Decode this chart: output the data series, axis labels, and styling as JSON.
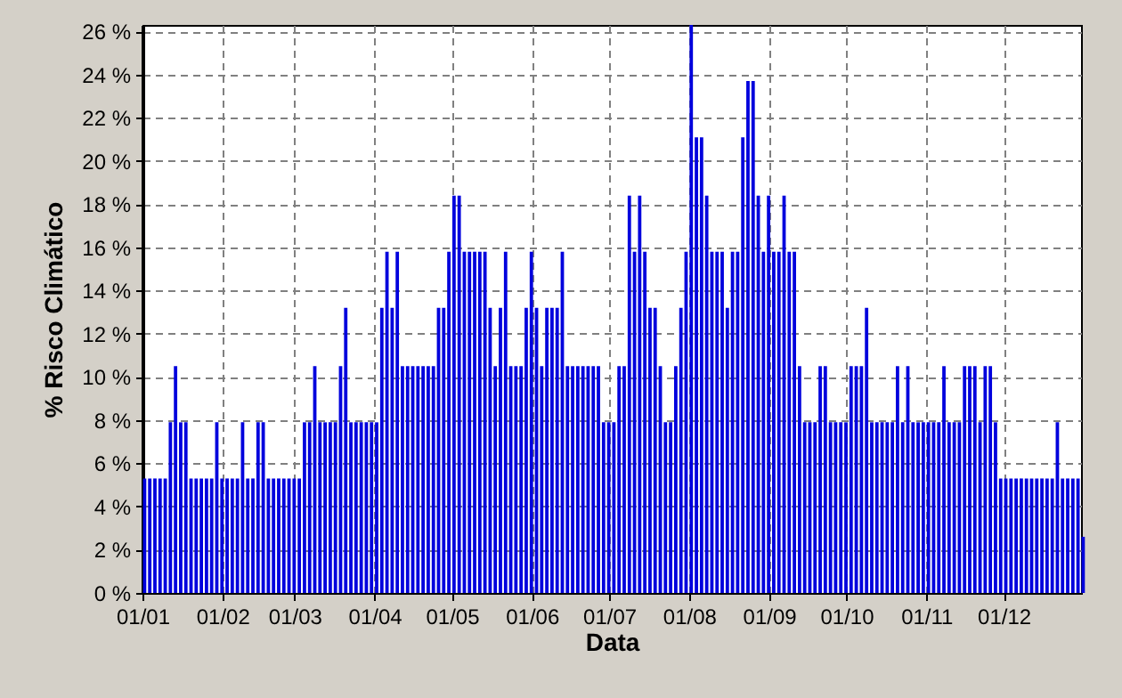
{
  "chart_data": {
    "type": "bar",
    "xlabel": "Data",
    "ylabel": "% Risco Climático",
    "x": [
      "--01-01",
      "--01-03",
      "--01-05",
      "--01-07",
      "--01-09",
      "--01-11",
      "--01-13",
      "--01-15",
      "--01-17",
      "--01-19",
      "--01-21",
      "--01-23",
      "--01-25",
      "--01-27",
      "--01-29",
      "--01-31",
      "--02-02",
      "--02-04",
      "--02-06",
      "--02-08",
      "--02-10",
      "--02-12",
      "--02-14",
      "--02-16",
      "--02-18",
      "--02-20",
      "--02-22",
      "--02-24",
      "--02-26",
      "--02-28",
      "--03-02",
      "--03-04",
      "--03-06",
      "--03-08",
      "--03-10",
      "--03-12",
      "--03-14",
      "--03-16",
      "--03-18",
      "--03-20",
      "--03-22",
      "--03-24",
      "--03-26",
      "--03-28",
      "--03-30",
      "--04-01",
      "--04-03",
      "--04-05",
      "--04-07",
      "--04-09",
      "--04-11",
      "--04-13",
      "--04-15",
      "--04-17",
      "--04-19",
      "--04-21",
      "--04-23",
      "--04-25",
      "--04-27",
      "--04-29",
      "--05-01",
      "--05-03",
      "--05-05",
      "--05-07",
      "--05-09",
      "--05-11",
      "--05-13",
      "--05-15",
      "--05-17",
      "--05-19",
      "--05-21",
      "--05-23",
      "--05-25",
      "--05-27",
      "--05-29",
      "--05-31",
      "--06-02",
      "--06-04",
      "--06-06",
      "--06-08",
      "--06-10",
      "--06-12",
      "--06-14",
      "--06-16",
      "--06-18",
      "--06-20",
      "--06-22",
      "--06-24",
      "--06-26",
      "--06-28",
      "--06-30",
      "--07-02",
      "--07-04",
      "--07-06",
      "--07-08",
      "--07-10",
      "--07-12",
      "--07-14",
      "--07-16",
      "--07-18",
      "--07-20",
      "--07-22",
      "--07-24",
      "--07-26",
      "--07-28",
      "--07-30",
      "--08-01",
      "--08-03",
      "--08-05",
      "--08-07",
      "--08-09",
      "--08-11",
      "--08-13",
      "--08-15",
      "--08-17",
      "--08-19",
      "--08-21",
      "--08-23",
      "--08-25",
      "--08-27",
      "--08-29",
      "--08-31",
      "--09-02",
      "--09-04",
      "--09-06",
      "--09-08",
      "--09-10",
      "--09-12",
      "--09-14",
      "--09-16",
      "--09-18",
      "--09-20",
      "--09-22",
      "--09-24",
      "--09-26",
      "--09-28",
      "--09-30",
      "--10-02",
      "--10-04",
      "--10-06",
      "--10-08",
      "--10-10",
      "--10-12",
      "--10-14",
      "--10-16",
      "--10-18",
      "--10-20",
      "--10-22",
      "--10-24",
      "--10-26",
      "--10-28",
      "--10-30",
      "--11-01",
      "--11-03",
      "--11-05",
      "--11-07",
      "--11-09",
      "--11-11",
      "--11-13",
      "--11-15",
      "--11-17",
      "--11-19",
      "--11-21",
      "--11-23",
      "--11-25",
      "--11-27",
      "--11-29",
      "--12-01",
      "--12-03",
      "--12-05",
      "--12-07",
      "--12-09",
      "--12-11",
      "--12-13",
      "--12-15",
      "--12-17",
      "--12-19",
      "--12-21",
      "--12-23",
      "--12-25",
      "--12-27",
      "--12-29",
      "--12-31"
    ],
    "series": [
      {
        "color": "#0000dd",
        "values": [
          5.3,
          5.3,
          5.3,
          5.3,
          5.3,
          7.9,
          10.5,
          7.9,
          7.9,
          5.3,
          5.3,
          5.3,
          5.3,
          5.3,
          7.9,
          5.3,
          5.3,
          5.3,
          5.3,
          7.9,
          5.3,
          5.3,
          7.9,
          7.9,
          5.3,
          5.3,
          5.3,
          5.3,
          5.3,
          5.3,
          5.3,
          7.9,
          7.9,
          10.5,
          7.9,
          7.9,
          7.9,
          7.9,
          10.5,
          13.2,
          7.9,
          7.9,
          7.9,
          7.9,
          7.9,
          7.9,
          13.2,
          15.8,
          13.2,
          15.8,
          10.5,
          10.5,
          10.5,
          10.5,
          10.5,
          10.5,
          10.5,
          13.2,
          13.2,
          15.8,
          18.4,
          18.4,
          15.8,
          15.8,
          15.8,
          15.8,
          15.8,
          13.2,
          10.5,
          13.2,
          15.8,
          10.5,
          10.5,
          10.5,
          13.2,
          15.8,
          13.2,
          10.5,
          13.2,
          13.2,
          13.2,
          15.8,
          10.5,
          10.5,
          10.5,
          10.5,
          10.5,
          10.5,
          10.5,
          7.9,
          7.9,
          7.9,
          10.5,
          10.5,
          18.4,
          15.8,
          18.4,
          15.8,
          13.2,
          13.2,
          10.5,
          7.9,
          7.9,
          10.5,
          13.2,
          15.8,
          26.3,
          21.1,
          21.1,
          18.4,
          15.8,
          15.8,
          15.8,
          13.2,
          15.8,
          15.8,
          21.1,
          23.7,
          23.7,
          18.4,
          15.8,
          18.4,
          15.8,
          15.8,
          18.4,
          15.8,
          15.8,
          10.5,
          7.9,
          7.9,
          7.9,
          10.5,
          10.5,
          7.9,
          7.9,
          7.9,
          7.9,
          10.5,
          10.5,
          10.5,
          13.2,
          7.9,
          7.9,
          7.9,
          7.9,
          7.9,
          10.5,
          7.9,
          10.5,
          7.9,
          7.9,
          7.9,
          7.9,
          7.9,
          7.9,
          10.5,
          7.9,
          7.9,
          7.9,
          10.5,
          10.5,
          10.5,
          7.9,
          10.5,
          10.5,
          7.9,
          5.3,
          5.3,
          5.3,
          5.3,
          5.3,
          5.3,
          5.3,
          5.3,
          5.3,
          5.3,
          5.3,
          7.9,
          5.3,
          5.3,
          5.3,
          5.3,
          2.6
        ]
      }
    ],
    "xlim": [
      "--01-01",
      "--12-31"
    ],
    "xticks": [
      {
        "value": "--01-01",
        "label": "01/01"
      },
      {
        "value": "--02-01",
        "label": "01/02"
      },
      {
        "value": "--03-01",
        "label": "01/03"
      },
      {
        "value": "--04-01",
        "label": "01/04"
      },
      {
        "value": "--05-01",
        "label": "01/05"
      },
      {
        "value": "--06-01",
        "label": "01/06"
      },
      {
        "value": "--07-01",
        "label": "01/07"
      },
      {
        "value": "--08-01",
        "label": "01/08"
      },
      {
        "value": "--09-01",
        "label": "01/09"
      },
      {
        "value": "--10-01",
        "label": "01/10"
      },
      {
        "value": "--11-01",
        "label": "01/11"
      },
      {
        "value": "--12-01",
        "label": "01/12"
      }
    ],
    "ylim": [
      0,
      26.3
    ],
    "yticks": [
      {
        "value": 0,
        "label": "0 %"
      },
      {
        "value": 2,
        "label": "2 %"
      },
      {
        "value": 4,
        "label": "4 %"
      },
      {
        "value": 6,
        "label": "6 %"
      },
      {
        "value": 8,
        "label": "8 %"
      },
      {
        "value": 10,
        "label": "10 %"
      },
      {
        "value": 12,
        "label": "12 %"
      },
      {
        "value": 14,
        "label": "14 %"
      },
      {
        "value": 16,
        "label": "16 %"
      },
      {
        "value": 18,
        "label": "18 %"
      },
      {
        "value": 20,
        "label": "20 %"
      },
      {
        "value": 22,
        "label": "22 %"
      },
      {
        "value": 24,
        "label": "24 %"
      },
      {
        "value": 26,
        "label": "26 %"
      }
    ],
    "grid": true
  }
}
